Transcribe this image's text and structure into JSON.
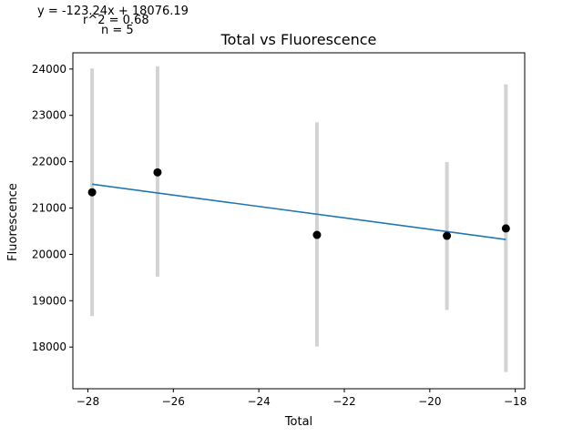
{
  "chart_data": {
    "type": "scatter",
    "title": "Total vs Fluorescence",
    "xlabel": "Total",
    "ylabel": "Fluorescence",
    "xlim": [
      -28.35,
      -17.78
    ],
    "ylim": [
      17100,
      24350
    ],
    "xticks": [
      -28,
      -26,
      -24,
      -22,
      -20,
      -18
    ],
    "yticks": [
      18000,
      19000,
      20000,
      21000,
      22000,
      23000,
      24000
    ],
    "points": [
      {
        "x": -27.9,
        "y": 21340,
        "err_low": 18670,
        "err_high": 24010
      },
      {
        "x": -26.37,
        "y": 21770,
        "err_low": 19520,
        "err_high": 24060
      },
      {
        "x": -22.64,
        "y": 20420,
        "err_low": 18010,
        "err_high": 22850
      },
      {
        "x": -19.6,
        "y": 20400,
        "err_low": 18800,
        "err_high": 21990
      },
      {
        "x": -18.22,
        "y": 20560,
        "err_low": 17460,
        "err_high": 23670
      }
    ],
    "fit": {
      "slope": -123.24,
      "intercept": 18076.19
    },
    "grid": false,
    "colors": {
      "points": "#000000",
      "errorbars": "#d3d3d3",
      "fit": "#1f77b4"
    }
  },
  "annotations": {
    "equation": "y = -123.24x + 18076.19",
    "r2": "r^2 = 0.68",
    "n": "n = 5"
  }
}
